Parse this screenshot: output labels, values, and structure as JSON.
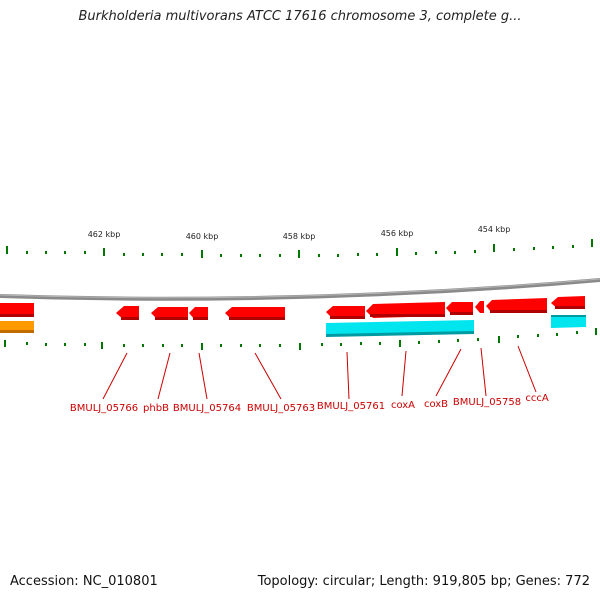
{
  "header": {
    "title": "Burkholderia multivorans ATCC 17616 chromosome 3, complete g..."
  },
  "footer": {
    "accession": "Accession: NC_010801",
    "summary": "Topology: circular; Length: 919,805 bp; Genes: 772"
  },
  "scale": {
    "labels": [
      "462 kbp",
      "460 kbp",
      "458 kbp",
      "456 kbp",
      "454 kbp"
    ]
  },
  "genes": {
    "labels": [
      "BMULJ_05766",
      "phbB",
      "BMULJ_05764",
      "BMULJ_05763",
      "BMULJ_05761",
      "coxA",
      "coxB",
      "BMULJ_05758",
      "cccA"
    ]
  },
  "colors": {
    "forward_strand": "#ff0000",
    "cyan_feature": "#00e5ee",
    "orange_feature": "#ff9900",
    "backbone": "#808080",
    "ticks": "#007700",
    "label": "#cc0000"
  }
}
